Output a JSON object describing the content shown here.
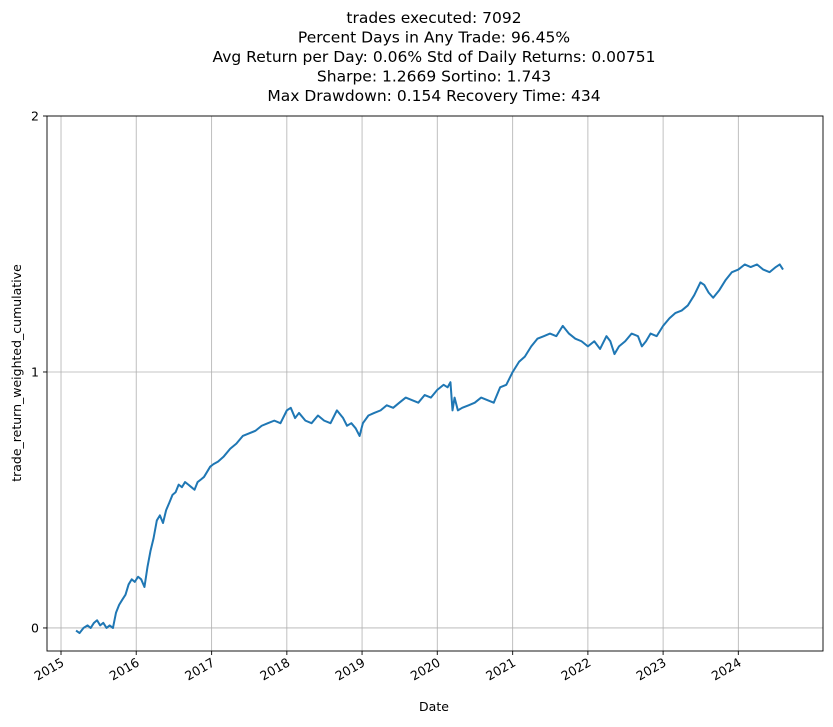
{
  "chart_data": {
    "type": "line",
    "title_lines": [
      "trades executed: 7092",
      "Percent Days in Any Trade: 96.45%",
      "Avg Return per Day: 0.06%  Std of Daily Returns: 0.00751",
      "Sharpe: 1.2669  Sortino: 1.743",
      "Max Drawdown: 0.154  Recovery Time: 434"
    ],
    "xlabel": "Date",
    "ylabel": "trade_return_weighted_cumulative",
    "x_scale": "time",
    "xlim": [
      "2014-10-25",
      "2025-02-15"
    ],
    "ylim": [
      -0.09,
      2.0
    ],
    "x_ticks": [
      {
        "date": "2015-01-01",
        "label": "2015"
      },
      {
        "date": "2016-01-01",
        "label": "2016"
      },
      {
        "date": "2017-01-01",
        "label": "2017"
      },
      {
        "date": "2018-01-01",
        "label": "2018"
      },
      {
        "date": "2019-01-01",
        "label": "2019"
      },
      {
        "date": "2020-01-01",
        "label": "2020"
      },
      {
        "date": "2021-01-01",
        "label": "2021"
      },
      {
        "date": "2022-01-01",
        "label": "2022"
      },
      {
        "date": "2023-01-01",
        "label": "2023"
      },
      {
        "date": "2024-01-01",
        "label": "2024"
      }
    ],
    "y_ticks": [
      {
        "value": 0,
        "label": "0"
      },
      {
        "value": 1,
        "label": "1"
      },
      {
        "value": 2,
        "label": "2"
      }
    ],
    "grid": true,
    "line_color": "#1f77b4",
    "series": [
      {
        "x": [
          "2015-03-15",
          "2015-04-01",
          "2015-04-20",
          "2015-05-10",
          "2015-05-25",
          "2015-06-10",
          "2015-06-25",
          "2015-07-10",
          "2015-07-25",
          "2015-08-10",
          "2015-08-25",
          "2015-09-10",
          "2015-09-25",
          "2015-10-10",
          "2015-10-25",
          "2015-11-10",
          "2015-11-25",
          "2015-12-10",
          "2015-12-25",
          "2016-01-10",
          "2016-01-25",
          "2016-02-10",
          "2016-02-25",
          "2016-03-10",
          "2016-03-25",
          "2016-04-10",
          "2016-04-25",
          "2016-05-10",
          "2016-05-25",
          "2016-06-10",
          "2016-06-25",
          "2016-07-10",
          "2016-07-25",
          "2016-08-10",
          "2016-08-25",
          "2016-09-10",
          "2016-09-25",
          "2016-10-10",
          "2016-10-25",
          "2016-11-10",
          "2016-11-25",
          "2016-12-10",
          "2016-12-25",
          "2017-01-10",
          "2017-02-01",
          "2017-03-01",
          "2017-04-01",
          "2017-05-01",
          "2017-06-01",
          "2017-07-01",
          "2017-08-01",
          "2017-09-01",
          "2017-10-01",
          "2017-11-01",
          "2017-12-01",
          "2018-01-01",
          "2018-01-20",
          "2018-02-10",
          "2018-03-01",
          "2018-04-01",
          "2018-05-01",
          "2018-06-01",
          "2018-07-01",
          "2018-08-01",
          "2018-09-01",
          "2018-10-01",
          "2018-10-20",
          "2018-11-10",
          "2018-12-01",
          "2018-12-20",
          "2019-01-05",
          "2019-02-01",
          "2019-03-01",
          "2019-04-01",
          "2019-05-01",
          "2019-06-01",
          "2019-07-01",
          "2019-08-01",
          "2019-09-01",
          "2019-10-01",
          "2019-11-01",
          "2019-12-01",
          "2020-01-01",
          "2020-02-01",
          "2020-02-20",
          "2020-03-05",
          "2020-03-15",
          "2020-03-25",
          "2020-04-10",
          "2020-05-01",
          "2020-06-01",
          "2020-07-01",
          "2020-08-01",
          "2020-09-01",
          "2020-10-01",
          "2020-11-01",
          "2020-12-01",
          "2021-01-01",
          "2021-02-01",
          "2021-03-01",
          "2021-04-01",
          "2021-05-01",
          "2021-06-01",
          "2021-07-01",
          "2021-08-01",
          "2021-09-01",
          "2021-10-01",
          "2021-11-01",
          "2021-12-01",
          "2022-01-01",
          "2022-02-01",
          "2022-03-01",
          "2022-04-01",
          "2022-04-20",
          "2022-05-10",
          "2022-06-01",
          "2022-07-01",
          "2022-08-01",
          "2022-09-01",
          "2022-09-20",
          "2022-10-10",
          "2022-11-01",
          "2022-12-01",
          "2023-01-01",
          "2023-02-01",
          "2023-03-01",
          "2023-04-01",
          "2023-05-01",
          "2023-06-01",
          "2023-07-01",
          "2023-07-20",
          "2023-08-10",
          "2023-09-01",
          "2023-10-01",
          "2023-11-01",
          "2023-12-01",
          "2024-01-01",
          "2024-02-01",
          "2024-03-01",
          "2024-04-01",
          "2024-05-01",
          "2024-06-01",
          "2024-07-01",
          "2024-07-20",
          "2024-08-05"
        ],
        "y": [
          -0.01,
          -0.02,
          0.0,
          0.01,
          0.0,
          0.02,
          0.03,
          0.01,
          0.02,
          0.0,
          0.01,
          0.0,
          0.06,
          0.09,
          0.11,
          0.13,
          0.17,
          0.19,
          0.18,
          0.2,
          0.19,
          0.16,
          0.24,
          0.3,
          0.35,
          0.42,
          0.44,
          0.41,
          0.46,
          0.49,
          0.52,
          0.53,
          0.56,
          0.55,
          0.57,
          0.56,
          0.55,
          0.54,
          0.57,
          0.58,
          0.59,
          0.61,
          0.63,
          0.64,
          0.65,
          0.67,
          0.7,
          0.72,
          0.75,
          0.76,
          0.77,
          0.79,
          0.8,
          0.81,
          0.8,
          0.85,
          0.86,
          0.82,
          0.84,
          0.81,
          0.8,
          0.83,
          0.81,
          0.8,
          0.85,
          0.82,
          0.79,
          0.8,
          0.78,
          0.75,
          0.8,
          0.83,
          0.84,
          0.85,
          0.87,
          0.86,
          0.88,
          0.9,
          0.89,
          0.88,
          0.91,
          0.9,
          0.93,
          0.95,
          0.94,
          0.96,
          0.85,
          0.9,
          0.85,
          0.86,
          0.87,
          0.88,
          0.9,
          0.89,
          0.88,
          0.94,
          0.95,
          1.0,
          1.04,
          1.06,
          1.1,
          1.13,
          1.14,
          1.15,
          1.14,
          1.18,
          1.15,
          1.13,
          1.12,
          1.1,
          1.12,
          1.09,
          1.14,
          1.12,
          1.07,
          1.1,
          1.12,
          1.15,
          1.14,
          1.1,
          1.12,
          1.15,
          1.14,
          1.18,
          1.21,
          1.23,
          1.24,
          1.26,
          1.3,
          1.35,
          1.34,
          1.31,
          1.29,
          1.32,
          1.36,
          1.39,
          1.4,
          1.42,
          1.41,
          1.42,
          1.4,
          1.39,
          1.41,
          1.42,
          1.4
        ]
      }
    ]
  }
}
